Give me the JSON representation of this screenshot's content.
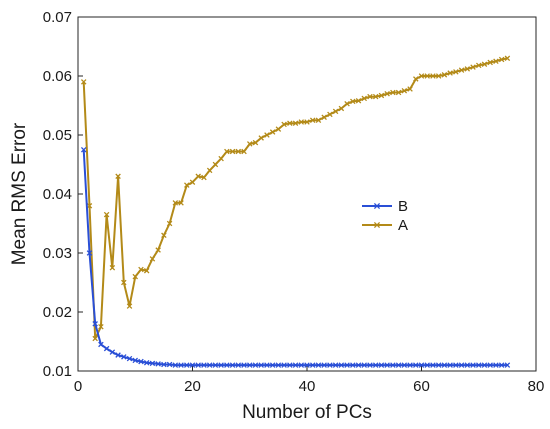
{
  "chart_data": {
    "type": "line",
    "title": "",
    "xlabel": "Number of PCs",
    "ylabel": "Mean RMS Error",
    "xlim": [
      0,
      80
    ],
    "ylim": [
      0.01,
      0.07
    ],
    "xticks": [
      "0",
      "20",
      "40",
      "60",
      "80"
    ],
    "yticks": [
      "0.01",
      "0.02",
      "0.03",
      "0.04",
      "0.05",
      "0.06",
      "0.07"
    ],
    "grid": false,
    "legend": "right-center",
    "series": [
      {
        "name": "B",
        "color": "#2a4fd6",
        "marker": "x",
        "x": [
          1,
          2,
          3,
          4,
          5,
          6,
          7,
          8,
          9,
          10,
          11,
          12,
          13,
          14,
          15,
          16,
          17,
          18,
          19,
          20,
          21,
          22,
          23,
          24,
          25,
          26,
          27,
          28,
          29,
          30,
          31,
          32,
          33,
          34,
          35,
          36,
          37,
          38,
          39,
          40,
          41,
          42,
          43,
          44,
          45,
          46,
          47,
          48,
          49,
          50,
          51,
          52,
          53,
          54,
          55,
          56,
          57,
          58,
          59,
          60,
          61,
          62,
          63,
          64,
          65,
          66,
          67,
          68,
          69,
          70,
          71,
          72,
          73,
          74,
          75
        ],
        "y": [
          0.0475,
          0.03,
          0.018,
          0.0145,
          0.0138,
          0.0132,
          0.0127,
          0.0124,
          0.0121,
          0.0118,
          0.0116,
          0.0114,
          0.0113,
          0.0112,
          0.0111,
          0.0111,
          0.011,
          0.011,
          0.011,
          0.011,
          0.011,
          0.011,
          0.011,
          0.011,
          0.011,
          0.011,
          0.011,
          0.011,
          0.011,
          0.011,
          0.011,
          0.011,
          0.011,
          0.011,
          0.011,
          0.011,
          0.011,
          0.011,
          0.011,
          0.011,
          0.011,
          0.011,
          0.011,
          0.011,
          0.011,
          0.011,
          0.011,
          0.011,
          0.011,
          0.011,
          0.011,
          0.011,
          0.011,
          0.011,
          0.011,
          0.011,
          0.011,
          0.011,
          0.011,
          0.011,
          0.011,
          0.011,
          0.011,
          0.011,
          0.011,
          0.011,
          0.011,
          0.011,
          0.011,
          0.011,
          0.011,
          0.011,
          0.011,
          0.011,
          0.011
        ]
      },
      {
        "name": "A",
        "color": "#b38a18",
        "marker": "x",
        "x": [
          1,
          2,
          3,
          4,
          5,
          6,
          7,
          8,
          9,
          10,
          11,
          12,
          13,
          14,
          15,
          16,
          17,
          18,
          19,
          20,
          21,
          22,
          23,
          24,
          25,
          26,
          27,
          28,
          29,
          30,
          31,
          32,
          33,
          34,
          35,
          36,
          37,
          38,
          39,
          40,
          41,
          42,
          43,
          44,
          45,
          46,
          47,
          48,
          49,
          50,
          51,
          52,
          53,
          54,
          55,
          56,
          57,
          58,
          59,
          60,
          61,
          62,
          63,
          64,
          65,
          66,
          67,
          68,
          69,
          70,
          71,
          72,
          73,
          74,
          75
        ],
        "y": [
          0.059,
          0.038,
          0.0155,
          0.0175,
          0.0365,
          0.0275,
          0.043,
          0.025,
          0.021,
          0.026,
          0.0272,
          0.027,
          0.029,
          0.0305,
          0.033,
          0.035,
          0.0385,
          0.0385,
          0.0415,
          0.042,
          0.043,
          0.0428,
          0.044,
          0.045,
          0.046,
          0.0472,
          0.0472,
          0.0472,
          0.0472,
          0.0485,
          0.0487,
          0.0495,
          0.05,
          0.0505,
          0.051,
          0.0518,
          0.052,
          0.052,
          0.0522,
          0.0522,
          0.0525,
          0.0525,
          0.053,
          0.0535,
          0.054,
          0.0545,
          0.0553,
          0.0557,
          0.0558,
          0.0562,
          0.0565,
          0.0565,
          0.0567,
          0.057,
          0.0572,
          0.0572,
          0.0575,
          0.0578,
          0.0595,
          0.06,
          0.06,
          0.06,
          0.06,
          0.0602,
          0.0605,
          0.0607,
          0.061,
          0.0612,
          0.0615,
          0.0618,
          0.062,
          0.0623,
          0.0625,
          0.0628,
          0.063
        ]
      }
    ]
  }
}
